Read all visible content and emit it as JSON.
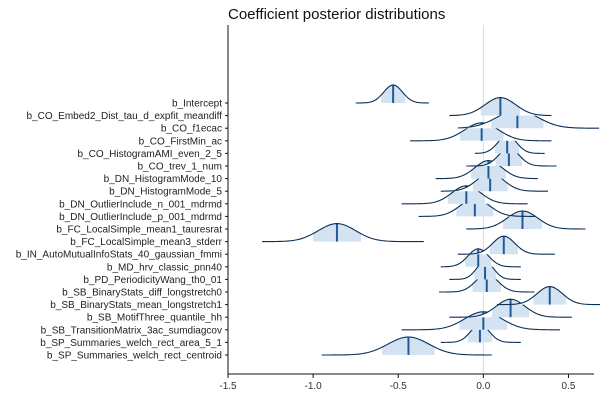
{
  "chart_data": {
    "type": "ridgeline",
    "title": "Coefficient posterior distributions",
    "xlabel": "",
    "ylabel": "",
    "xlim": [
      -1.5,
      0.65
    ],
    "xticks": [
      -1.5,
      -1.0,
      -0.5,
      0.0,
      0.5
    ],
    "xtick_labels": [
      "-1.5",
      "-1.0",
      "-0.5",
      "0.0",
      "0.5"
    ],
    "reference_line_x": 0,
    "grid": false,
    "legend": "none",
    "colors": {
      "fill": "#d4e3f1",
      "outline": "#0b2f55",
      "median": "#1f5b99",
      "refline": "#dddddd",
      "axis": "#111111"
    },
    "categories": [
      {
        "label": "b_Intercept",
        "median": -0.53,
        "lo": -0.75,
        "hi": -0.32,
        "sd": 0.055
      },
      {
        "label": "b_CO_Embed2_Dist_tau_d_expfit_meandiff",
        "median": 0.1,
        "lo": -0.2,
        "hi": 0.4,
        "sd": 0.09
      },
      {
        "label": "b_CO_f1ecac",
        "median": 0.2,
        "lo": -0.15,
        "hi": 0.68,
        "sd": 0.12
      },
      {
        "label": "b_CO_FirstMin_ac",
        "median": -0.01,
        "lo": -0.43,
        "hi": 0.4,
        "sd": 0.1
      },
      {
        "label": "b_CO_HistogramAMI_even_2_5",
        "median": 0.14,
        "lo": -0.05,
        "hi": 0.36,
        "sd": 0.055
      },
      {
        "label": "b_CO_trev_1_num",
        "median": 0.15,
        "lo": -0.1,
        "hi": 0.43,
        "sd": 0.06
      },
      {
        "label": "b_DN_HistogramMode_10",
        "median": 0.03,
        "lo": -0.28,
        "hi": 0.32,
        "sd": 0.08
      },
      {
        "label": "b_DN_HistogramMode_5",
        "median": 0.04,
        "lo": -0.25,
        "hi": 0.38,
        "sd": 0.08
      },
      {
        "label": "b_DN_OutlierInclude_n_001_mdrmd",
        "median": -0.1,
        "lo": -0.48,
        "hi": 0.26,
        "sd": 0.085
      },
      {
        "label": "b_DN_OutlierInclude_p_001_mdrmd",
        "median": -0.05,
        "lo": -0.38,
        "hi": 0.3,
        "sd": 0.085
      },
      {
        "label": "b_FC_LocalSimple_mean1_tauresrat",
        "median": 0.23,
        "lo": -0.1,
        "hi": 0.6,
        "sd": 0.09
      },
      {
        "label": "b_FC_LocalSimple_mean3_stderr",
        "median": -0.86,
        "lo": -1.3,
        "hi": -0.35,
        "sd": 0.11
      },
      {
        "label": "b_IN_AutoMutualInfoStats_40_gaussian_fmmi",
        "median": 0.12,
        "lo": -0.15,
        "hi": 0.42,
        "sd": 0.065
      },
      {
        "label": "b_MD_hrv_classic_pnn40",
        "median": -0.03,
        "lo": -0.25,
        "hi": 0.22,
        "sd": 0.06
      },
      {
        "label": "b_PD_PeriodicityWang_th0_01",
        "median": 0.01,
        "lo": -0.2,
        "hi": 0.22,
        "sd": 0.05
      },
      {
        "label": "b_SB_BinaryStats_diff_longstretch0",
        "median": 0.02,
        "lo": -0.26,
        "hi": 0.3,
        "sd": 0.065
      },
      {
        "label": "b_SB_BinaryStats_mean_longstretch1",
        "median": 0.39,
        "lo": 0.08,
        "hi": 0.73,
        "sd": 0.075
      },
      {
        "label": "b_SB_MotifThree_quantile_hh",
        "median": 0.16,
        "lo": -0.2,
        "hi": 0.52,
        "sd": 0.085
      },
      {
        "label": "b_SB_TransitionMatrix_3ac_sumdiagcov",
        "median": 0.0,
        "lo": -0.48,
        "hi": 0.45,
        "sd": 0.11
      },
      {
        "label": "b_SP_Summaries_welch_rect_area_5_1",
        "median": -0.02,
        "lo": -0.25,
        "hi": 0.22,
        "sd": 0.055
      },
      {
        "label": "b_SP_Summaries_welch_rect_centroid",
        "median": -0.44,
        "lo": -0.95,
        "hi": 0.05,
        "sd": 0.12
      }
    ]
  }
}
